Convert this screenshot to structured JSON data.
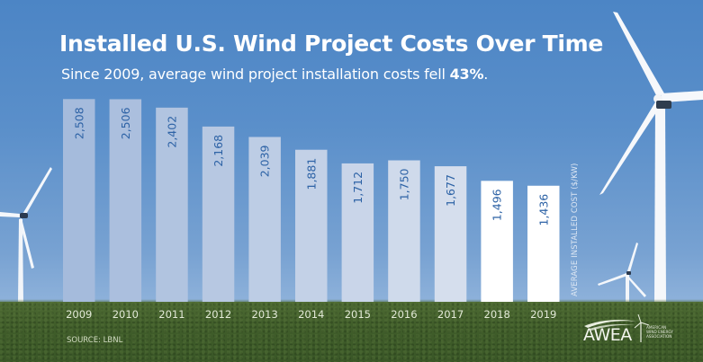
{
  "header": {
    "title": "Installed U.S. Wind Project Costs Over Time",
    "subtitle_prefix": "Since 2009, average wind project installation costs fell ",
    "subtitle_highlight": "43%",
    "subtitle_suffix": "."
  },
  "footer": {
    "source": "SOURCE: LBNL",
    "logo": {
      "wordmark": "AWEA",
      "line1": "American",
      "line2": "Wind Energy",
      "line3": "Association",
      "icon": "wind-turbine-icon"
    }
  },
  "colors": {
    "sky_top": "#4c85c5",
    "sky_bottom": "#8fb3db",
    "grass": "#405d2a",
    "bar_label": "#2e63a6",
    "bar_early": "#a5bbdc",
    "bar_late": "#d5deed",
    "bar_latest": "#ffffff",
    "title": "#ffffff"
  },
  "chart_data": {
    "type": "bar",
    "title": "Installed U.S. Wind Project Costs Over Time",
    "subtitle": "Since 2009, average wind project installation costs fell 43%.",
    "xlabel": "",
    "ylabel": "AVERAGE INSTALLED COST ($/KW)",
    "categories": [
      "2009",
      "2010",
      "2011",
      "2012",
      "2013",
      "2014",
      "2015",
      "2016",
      "2017",
      "2018",
      "2019"
    ],
    "values": [
      2508,
      2506,
      2402,
      2168,
      2039,
      1881,
      1712,
      1750,
      1677,
      1496,
      1436
    ],
    "value_labels": [
      "2,508",
      "2,506",
      "2,402",
      "2,168",
      "2,039",
      "1,881",
      "1,712",
      "1,750",
      "1,677",
      "1,496",
      "1,436"
    ],
    "ylim": [
      0,
      2800
    ],
    "grid": false,
    "legend": "none",
    "annotation": "SOURCE: LBNL"
  }
}
